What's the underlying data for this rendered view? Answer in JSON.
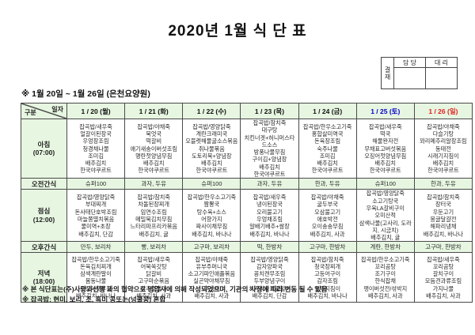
{
  "title": "2020년 1월 식 단 표",
  "subtitle": "※ 1월 20일 ~ 1월 26일 (은천요양원)",
  "approval": {
    "side_label": "결재",
    "col1": "담 당",
    "col2": "대 리"
  },
  "colors": {
    "band_green": "#e7f6e1",
    "weekday_text": "#111111",
    "saturday_text": "#0000c8",
    "sunday_text": "#e02020",
    "border": "#4a4a4a"
  },
  "table": {
    "corner": {
      "top": "일자",
      "bottom": "구분"
    },
    "days": [
      {
        "label": "1 / 20 (월)",
        "color": "#111111"
      },
      {
        "label": "1 / 21 (화)",
        "color": "#111111"
      },
      {
        "label": "1 / 22 (수)",
        "color": "#111111"
      },
      {
        "label": "1 / 23 (목)",
        "color": "#111111"
      },
      {
        "label": "1 / 24 (금)",
        "color": "#111111"
      },
      {
        "label": "1 / 25 (토)",
        "color": "#0000c8"
      },
      {
        "label": "1 / 26 (일)",
        "color": "#e02020"
      }
    ],
    "rows": [
      {
        "name": "breakfast",
        "kind": "meal",
        "label": "아침",
        "time": "(07:00)",
        "cells": [
          [
            "잡곡밥/새우죽",
            "얼갈이된장국",
            "우엉장조림",
            "청경채나물",
            "조미김",
            "배추김치",
            "한국야쿠르트"
          ],
          [
            "잡곡밥/야채죽",
            "북엇국",
            "떡갈비",
            "애기새송이버섯조림",
            "명란젓양념무침",
            "배추김치",
            "한국야쿠르트"
          ],
          [
            "잡곡밥/영양닭죽",
            "계란크래미국",
            "오믈렛해물굴소스볶음",
            "취나물볶음",
            "도토리묵+양념장",
            "배추김치",
            "한국야쿠르트"
          ],
          [
            "잡곡밥/참치죽",
            "대구탕",
            "치킨너겟+허니머스타드소스",
            "방풍나물무침",
            "구이김+양념장",
            "배추김치",
            "한국야쿠르트"
          ],
          [
            "잡곡밥/한우소고기죽",
            "홍합살미역국",
            "돈육장조림",
            "숙주나물",
            "조미김",
            "배추김치",
            "한국야쿠르트"
          ],
          [
            "잡곡밥/새우죽",
            "떡국",
            "해물완자전",
            "무채표고버섯볶음",
            "오징어젓양념무침",
            "배추김치",
            "한국야쿠르트"
          ],
          [
            "잡곡밥/야채죽",
            "다슬기탕",
            "꽈리메추리알장조림",
            "동태전",
            "시래기지짐이",
            "배추김치",
            "한국야쿠르트"
          ]
        ]
      },
      {
        "name": "am-snack",
        "kind": "snack",
        "label": "오전간식",
        "cells": [
          "슈퍼100",
          "과자, 두유",
          "슈퍼100",
          "과자, 두유",
          "한과, 두유",
          "슈퍼100",
          "한과, 두유"
        ]
      },
      {
        "name": "lunch",
        "kind": "meal",
        "label": "점심",
        "time": "(12:00)",
        "cells": [
          [
            "잡곡밥/영양닭죽",
            "부대찌개",
            "돈사태단호박조림",
            "마늘쫑멸치볶음",
            "물미역+초장",
            "배추김치, 단감"
          ],
          [
            "잡곡밥/참치죽",
            "차돌된장찌개",
            "임연수조림",
            "메밀묵김치무침",
            "느타리파프리카볶음",
            "배추김치, 귤"
          ],
          [
            "잡곡밥/한우소고기죽",
            "짬뽕국",
            "탕수육+소스",
            "어향가지",
            "짜사이채무침",
            "배추김치, 바나나"
          ],
          [
            "잡곡밥/새우죽",
            "냉이된장국",
            "오리불고기",
            "우엉채조림",
            "알배기배추+쌈장",
            "배추김치, 바나나"
          ],
          [
            "잡곡밥/야채죽",
            "굴두부국",
            "오삼불고기",
            "애호박전",
            "오이송송무침",
            "배추김치, 사과"
          ],
          [
            "잡곡밥/영양닭죽",
            "소고기탕국",
            "우육LA갈비구이",
            "오미산적",
            "삼색나물(고사리, 도라지, 시금치)",
            "배추김치, 귤"
          ],
          [
            "잡곡밥/참치죽",
            "장터국",
            "우둔고기",
            "몽글달걀전",
            "해파리냉채",
            "배추김치, 바나나"
          ]
        ]
      },
      {
        "name": "pm-snack",
        "kind": "snack",
        "label": "오후간식",
        "cells": [
          "만두, 보리차",
          "빵, 보리차",
          "고구마, 보리차",
          "떡, 한방차",
          "고구마, 한방차",
          "계란, 한방차",
          "고구마, 한방차"
        ]
      },
      {
        "name": "dinner",
        "kind": "meal",
        "label": "저녁",
        "time": "(18:00)",
        "cells": [
          [
            "잡곡밥/한우소고기죽",
            "돈육김치찌개",
            "삼색계란말이",
            "봄동나물",
            "오징어젓무침",
            "배추김치, 바나나"
          ],
          [
            "잡곡밥/새우죽",
            "어묵쑥갓탕",
            "닭갈비",
            "고구마순볶음",
            "상추겉절이",
            "배추김치, 사과"
          ],
          [
            "잡곡밥/야채죽",
            "유부주머니국",
            "소고기파인애플볶음",
            "실곤약야채무침",
            "무생채",
            "배추김치, 사과"
          ],
          [
            "잡곡밥/영양닭죽",
            "감자양파국",
            "꽁치캔무조림",
            "두부양념구이",
            "치커리사과겉절이",
            "배추김치, 단감"
          ],
          [
            "잡곡밥/참치죽",
            "청국장찌개",
            "고등어구이",
            "감자조림",
            "열무지짐이",
            "배추김치, 바나나"
          ],
          [
            "잡곡밥/한우소고기죽",
            "꼬리곰탕",
            "조기구이",
            "한식잡채",
            "팽이버섯전/섞박지",
            "배추김치, 사과"
          ],
          [
            "잡곡밥/새우죽",
            "꼬리곰탕",
            "갈치구이",
            "모듬견과류조림",
            "가지나물",
            "배추김치, 사과"
          ]
        ]
      }
    ]
  },
  "notes": [
    "※ 본 식단표는(주)사랑과선행 과의 협약으로 영양사에 의해 작성되었으며, 기관의 사정에 따라 변동 될 수 있음",
    "※ 잡곡밥: 현미, 보리, 조, 흑미 콩또는(넝쿨콩) 혼합"
  ]
}
